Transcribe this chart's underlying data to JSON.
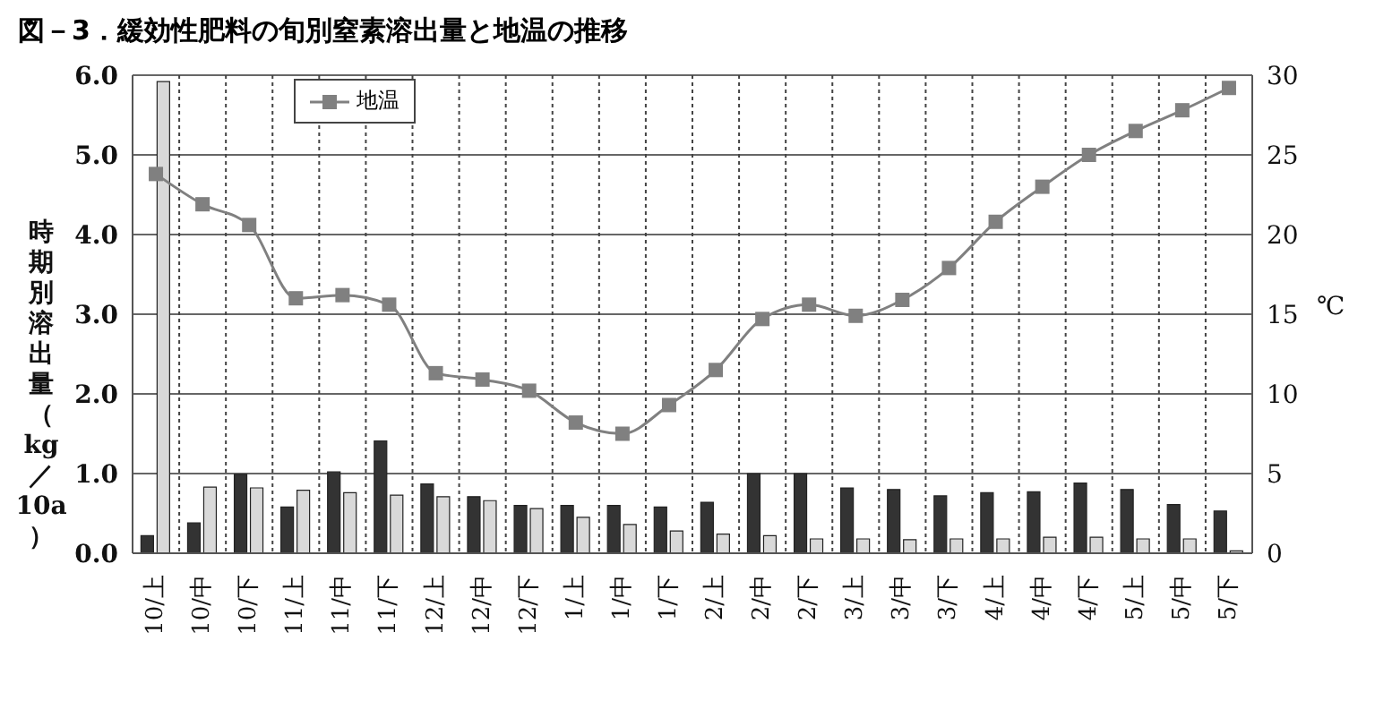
{
  "chart_data": {
    "type": "bar",
    "title": "図－3．緩効性肥料の旬別窒素溶出量と地温の推移",
    "ylabel": "時期別溶出量（kg／10a）",
    "y2label": "℃",
    "categories": [
      "10/上",
      "10/中",
      "10/下",
      "11/上",
      "11/中",
      "11/下",
      "12/上",
      "12/中",
      "12/下",
      "1/上",
      "1/中",
      "1/下",
      "2/上",
      "2/中",
      "2/下",
      "3/上",
      "3/中",
      "3/下",
      "4/上",
      "4/中",
      "4/下",
      "5/上",
      "5/中",
      "5/下"
    ],
    "series": [
      {
        "color": "#333333",
        "values": [
          0.22,
          0.38,
          0.99,
          0.58,
          1.02,
          1.41,
          0.87,
          0.71,
          0.6,
          0.6,
          0.6,
          0.58,
          0.64,
          1.0,
          1.0,
          0.82,
          0.8,
          0.72,
          0.76,
          0.77,
          0.88,
          0.8,
          0.61,
          0.53
        ]
      },
      {
        "color": "#d9d9d9",
        "values": [
          5.92,
          0.83,
          0.82,
          0.79,
          0.76,
          0.73,
          0.71,
          0.66,
          0.56,
          0.45,
          0.36,
          0.28,
          0.24,
          0.22,
          0.18,
          0.18,
          0.17,
          0.18,
          0.18,
          0.2,
          0.2,
          0.18,
          0.18,
          0.03
        ]
      },
      {
        "type": "line",
        "name": "地温",
        "color": "#808080",
        "axis": "y2",
        "marker": "square",
        "values": [
          23.8,
          21.9,
          20.6,
          16.0,
          16.2,
          15.6,
          11.3,
          10.9,
          10.2,
          8.2,
          7.5,
          9.3,
          11.5,
          14.7,
          15.6,
          14.9,
          15.9,
          17.9,
          20.8,
          23.0,
          25.0,
          26.5,
          27.8,
          29.2
        ]
      }
    ],
    "ylim": [
      0,
      6
    ],
    "yticks": [
      {
        "value": 0,
        "label": "0.0"
      },
      {
        "value": 1,
        "label": "1.0"
      },
      {
        "value": 2,
        "label": "2.0"
      },
      {
        "value": 3,
        "label": "3.0"
      },
      {
        "value": 4,
        "label": "4.0"
      },
      {
        "value": 5,
        "label": "5.0"
      },
      {
        "value": 6,
        "label": "6.0"
      }
    ],
    "y2lim": [
      0,
      30
    ],
    "y2ticks": [
      0,
      5,
      10,
      15,
      20,
      25,
      30
    ],
    "grid": true,
    "legend": "top left"
  }
}
